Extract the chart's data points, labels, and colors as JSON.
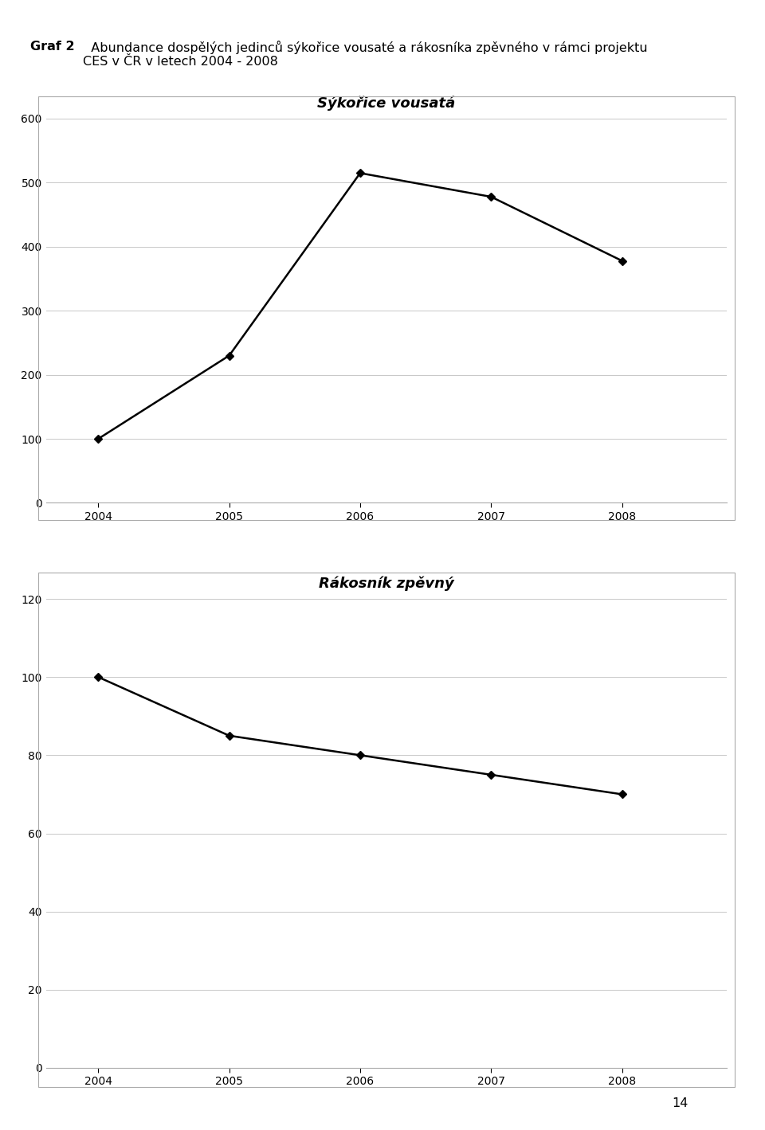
{
  "header_bold": "Graf 2",
  "header_text": "  Abundance dospělých jedinců sýkořice vousaté a rákosníka zpěvného v rámci projektu\nCES v ČR v letech 2004 - 2008",
  "page_number": "14",
  "chart1": {
    "title": "Sýkořice vousatá",
    "years": [
      2004,
      2005,
      2006,
      2007,
      2008
    ],
    "values": [
      100,
      230,
      515,
      478,
      378
    ],
    "ylim": [
      0,
      600
    ],
    "yticks": [
      0,
      100,
      200,
      300,
      400,
      500,
      600
    ]
  },
  "chart2": {
    "title": "Rákosník zpěvný",
    "years": [
      2004,
      2005,
      2006,
      2007,
      2008
    ],
    "values": [
      100,
      85,
      80,
      75,
      70
    ],
    "ylim": [
      0,
      120
    ],
    "yticks": [
      0,
      20,
      40,
      60,
      80,
      100,
      120
    ]
  },
  "line_color": "#000000",
  "marker": "D",
  "marker_size": 5,
  "line_width": 1.8,
  "background_color": "#ffffff",
  "chart_bg": "#ffffff",
  "grid_color": "#c8c8c8",
  "title_fontsize": 13,
  "axis_fontsize": 10,
  "header_fontsize": 11.5,
  "header_bold_fontsize": 11.5
}
